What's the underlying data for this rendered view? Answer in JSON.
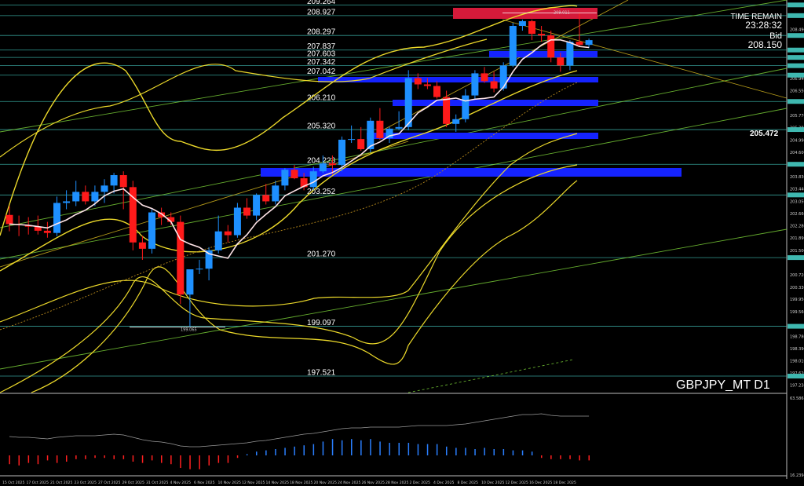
{
  "symbol": "GBPJPY_MT D1",
  "info": {
    "timer_label": "TIME REMAIN",
    "timer_value": "23:28:32",
    "bid_label": "Bid",
    "bid_value": "208.150"
  },
  "price_tag": "205.472",
  "chart_data": {
    "type": "candlestick",
    "title": "",
    "ylim": [
      197.0,
      209.42
    ],
    "horizontal_levels": [
      209.264,
      208.927,
      208.297,
      207.837,
      207.603,
      207.342,
      207.042,
      206.21,
      205.32,
      204.223,
      203.252,
      201.27,
      199.097,
      197.521
    ],
    "level_labels": [
      "209.264",
      "208.927",
      "208.297",
      "207.837",
      "207.603",
      "207.342",
      "207.042",
      "206.210",
      "205.320",
      "204.223",
      "203.252",
      "201.270",
      "199.097",
      "197.521"
    ],
    "marker_labels": [
      "209.011",
      "199.065"
    ],
    "price_axis_labels": [
      "208.490",
      "207.324",
      "206.940",
      "206.550",
      "205.770",
      "205.380",
      "204.990",
      "204.600",
      "203.830",
      "203.440",
      "203.050",
      "202.660",
      "202.280",
      "201.890",
      "201.500",
      "200.720",
      "200.330",
      "199.950",
      "199.560",
      "198.780",
      "198.390",
      "198.010",
      "197.620",
      "197.230"
    ],
    "indicator_axis_labels": [
      "63.586",
      "16.2394"
    ],
    "time_labels": [
      "15 Oct 2025",
      "17 Oct 2025",
      "21 Oct 2025",
      "23 Oct 2025",
      "27 Oct 2025",
      "29 Oct 2025",
      "31 Oct 2025",
      "4 Nov 2025",
      "6 Nov 2025",
      "10 Nov 2025",
      "12 Nov 2025",
      "14 Nov 2025",
      "18 Nov 2025",
      "20 Nov 2025",
      "24 Nov 2025",
      "26 Nov 2025",
      "28 Nov 2025",
      "2 Dec 2025",
      "4 Dec 2025",
      "8 Dec 2025",
      "10 Dec 2025",
      "12 Dec 2025",
      "16 Dec 2025",
      "18 Dec 2025"
    ],
    "candles": [
      {
        "o": 202.62,
        "h": 202.9,
        "l": 202.1,
        "c": 202.33
      },
      {
        "o": 202.33,
        "h": 202.6,
        "l": 201.95,
        "c": 202.3
      },
      {
        "o": 202.3,
        "h": 202.55,
        "l": 202.0,
        "c": 202.25
      },
      {
        "o": 202.25,
        "h": 202.6,
        "l": 202.0,
        "c": 202.12
      },
      {
        "o": 202.12,
        "h": 202.4,
        "l": 201.9,
        "c": 202.05
      },
      {
        "o": 202.05,
        "h": 203.2,
        "l": 201.95,
        "c": 203.0
      },
      {
        "o": 203.0,
        "h": 203.4,
        "l": 202.8,
        "c": 203.05
      },
      {
        "o": 203.05,
        "h": 203.7,
        "l": 202.9,
        "c": 203.35
      },
      {
        "o": 203.35,
        "h": 203.55,
        "l": 202.95,
        "c": 203.05
      },
      {
        "o": 203.05,
        "h": 203.55,
        "l": 202.9,
        "c": 203.35
      },
      {
        "o": 203.35,
        "h": 203.75,
        "l": 203.0,
        "c": 203.55
      },
      {
        "o": 203.55,
        "h": 203.95,
        "l": 203.3,
        "c": 203.88
      },
      {
        "o": 203.88,
        "h": 204.0,
        "l": 202.8,
        "c": 203.5
      },
      {
        "o": 203.5,
        "h": 203.7,
        "l": 201.5,
        "c": 201.75
      },
      {
        "o": 201.75,
        "h": 201.95,
        "l": 201.2,
        "c": 201.55
      },
      {
        "o": 201.55,
        "h": 202.8,
        "l": 201.4,
        "c": 202.7
      },
      {
        "o": 202.7,
        "h": 202.85,
        "l": 202.3,
        "c": 202.55
      },
      {
        "o": 202.55,
        "h": 202.7,
        "l": 202.3,
        "c": 202.4
      },
      {
        "o": 202.4,
        "h": 202.6,
        "l": 199.8,
        "c": 200.1
      },
      {
        "o": 200.1,
        "h": 200.9,
        "l": 199.07,
        "c": 200.9
      },
      {
        "o": 200.9,
        "h": 201.2,
        "l": 200.75,
        "c": 200.92
      },
      {
        "o": 200.92,
        "h": 201.6,
        "l": 200.55,
        "c": 201.5
      },
      {
        "o": 201.5,
        "h": 202.6,
        "l": 201.4,
        "c": 202.1
      },
      {
        "o": 202.1,
        "h": 202.3,
        "l": 201.75,
        "c": 201.98
      },
      {
        "o": 201.98,
        "h": 203.0,
        "l": 201.9,
        "c": 202.85
      },
      {
        "o": 202.85,
        "h": 203.15,
        "l": 202.5,
        "c": 202.6
      },
      {
        "o": 202.6,
        "h": 203.3,
        "l": 202.45,
        "c": 203.25
      },
      {
        "o": 203.25,
        "h": 203.6,
        "l": 202.95,
        "c": 203.05
      },
      {
        "o": 203.05,
        "h": 203.7,
        "l": 202.95,
        "c": 203.55
      },
      {
        "o": 203.55,
        "h": 204.1,
        "l": 203.4,
        "c": 204.05
      },
      {
        "o": 204.05,
        "h": 204.2,
        "l": 203.75,
        "c": 203.78
      },
      {
        "o": 203.78,
        "h": 203.95,
        "l": 203.4,
        "c": 203.5
      },
      {
        "o": 203.5,
        "h": 204.15,
        "l": 203.4,
        "c": 204.0
      },
      {
        "o": 204.0,
        "h": 204.5,
        "l": 203.95,
        "c": 204.25
      },
      {
        "o": 204.25,
        "h": 204.5,
        "l": 203.9,
        "c": 204.2
      },
      {
        "o": 204.2,
        "h": 205.1,
        "l": 204.0,
        "c": 205.0
      },
      {
        "o": 205.0,
        "h": 205.45,
        "l": 204.9,
        "c": 205.02
      },
      {
        "o": 205.02,
        "h": 205.4,
        "l": 204.65,
        "c": 204.7
      },
      {
        "o": 204.7,
        "h": 205.7,
        "l": 204.6,
        "c": 205.6
      },
      {
        "o": 205.6,
        "h": 206.0,
        "l": 205.0,
        "c": 205.05
      },
      {
        "o": 205.05,
        "h": 205.4,
        "l": 204.9,
        "c": 205.35
      },
      {
        "o": 205.35,
        "h": 205.9,
        "l": 205.3,
        "c": 205.4
      },
      {
        "o": 205.4,
        "h": 207.2,
        "l": 205.3,
        "c": 206.95
      },
      {
        "o": 206.95,
        "h": 207.1,
        "l": 206.6,
        "c": 206.75
      },
      {
        "o": 206.75,
        "h": 206.95,
        "l": 206.6,
        "c": 206.7
      },
      {
        "o": 206.7,
        "h": 206.85,
        "l": 206.3,
        "c": 206.35
      },
      {
        "o": 206.35,
        "h": 206.55,
        "l": 205.4,
        "c": 205.5
      },
      {
        "o": 205.5,
        "h": 205.8,
        "l": 205.25,
        "c": 205.65
      },
      {
        "o": 205.65,
        "h": 206.6,
        "l": 205.55,
        "c": 206.4
      },
      {
        "o": 206.4,
        "h": 207.2,
        "l": 206.3,
        "c": 207.1
      },
      {
        "o": 207.1,
        "h": 207.3,
        "l": 206.8,
        "c": 206.85
      },
      {
        "o": 206.85,
        "h": 207.15,
        "l": 206.5,
        "c": 206.62
      },
      {
        "o": 206.62,
        "h": 207.45,
        "l": 206.55,
        "c": 207.35
      },
      {
        "o": 207.35,
        "h": 208.7,
        "l": 207.3,
        "c": 208.6
      },
      {
        "o": 208.6,
        "h": 208.8,
        "l": 208.45,
        "c": 208.75
      },
      {
        "o": 208.75,
        "h": 208.8,
        "l": 208.15,
        "c": 208.35
      },
      {
        "o": 208.35,
        "h": 208.6,
        "l": 208.1,
        "c": 208.3
      },
      {
        "o": 208.3,
        "h": 208.45,
        "l": 207.45,
        "c": 207.6
      },
      {
        "o": 207.6,
        "h": 207.75,
        "l": 207.15,
        "c": 207.35
      },
      {
        "o": 207.35,
        "h": 208.15,
        "l": 207.2,
        "c": 208.1
      },
      {
        "o": 208.1,
        "h": 209.01,
        "l": 207.95,
        "c": 208.0
      },
      {
        "o": 208.0,
        "h": 208.2,
        "l": 207.9,
        "c": 208.15
      }
    ],
    "indicator": {
      "histogram": [
        -0.7,
        -0.8,
        -0.6,
        -0.7,
        -0.4,
        -0.6,
        -0.5,
        -0.3,
        -0.3,
        -0.2,
        -0.2,
        -0.3,
        -0.3,
        -0.5,
        -0.6,
        -0.4,
        -0.6,
        -0.7,
        -1.0,
        -1.1,
        -1.1,
        -0.8,
        -0.6,
        -0.6,
        -0.2,
        0.1,
        0.3,
        0.4,
        0.5,
        0.6,
        0.7,
        0.8,
        0.9,
        1.1,
        1.3,
        1.2,
        1.3,
        1.2,
        1.3,
        1.1,
        1.0,
        1.0,
        1.0,
        0.9,
        0.9,
        0.9,
        0.7,
        0.6,
        0.6,
        0.5,
        0.6,
        0.5,
        0.5,
        0.4,
        0.4,
        0.3,
        -0.2,
        -0.3,
        -0.3,
        -0.3,
        -0.4,
        -0.4
      ],
      "line": [
        0.4,
        0.3,
        0.3,
        0.2,
        0.1,
        0.3,
        0.4,
        0.5,
        0.5,
        0.5,
        0.6,
        0.7,
        0.6,
        0.3,
        0.0,
        -0.2,
        -0.3,
        -0.5,
        -0.8,
        -0.9,
        -0.9,
        -0.8,
        -0.7,
        -0.6,
        -0.5,
        -0.4,
        -0.2,
        -0.1,
        0.1,
        0.3,
        0.5,
        0.7,
        0.8,
        1.0,
        1.2,
        1.4,
        1.5,
        1.5,
        1.6,
        1.6,
        1.6,
        1.6,
        1.7,
        1.8,
        1.8,
        1.8,
        1.8,
        1.9,
        2.0,
        2.2,
        2.4,
        2.6,
        2.8,
        3.0,
        3.2,
        3.2,
        3.3,
        3.1,
        3.0,
        3.0,
        3.0,
        3.0
      ]
    }
  }
}
